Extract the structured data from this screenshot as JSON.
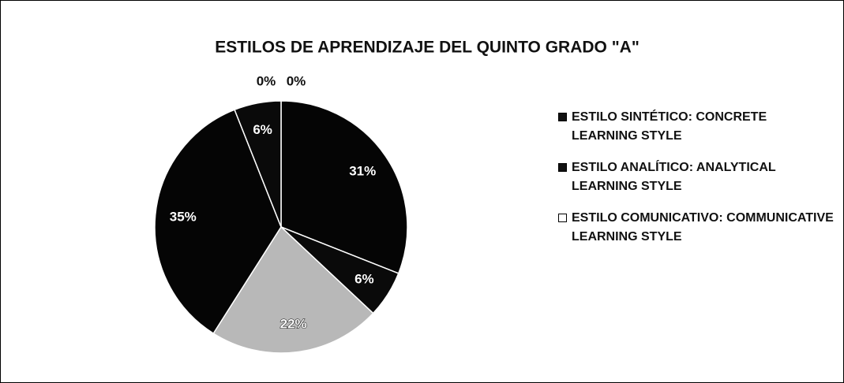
{
  "chart_data": {
    "type": "pie",
    "title": "ESTILOS DE APRENDIZAJE DEL QUINTO GRADO \"A\"",
    "categories": [
      "ESTILO SINTÉTICO: CONCRETE LEARNING STYLE",
      "ESTILO ANALÍTICO: ANALYTICAL LEARNING STYLE",
      "ESTILO COMUNICATIVO: COMMUNICATIVE LEARNING STYLE",
      null,
      null,
      null,
      null
    ],
    "values": [
      31,
      6,
      22,
      35,
      6,
      0,
      0
    ],
    "value_labels": [
      "31%",
      "6%",
      "22%",
      "35%",
      "6%",
      "0%",
      "0%"
    ],
    "colors": [
      "#050505",
      "#0a0a0a",
      "#b8b8b8",
      "#050505",
      "#0a0a0a",
      "#050505",
      "#050505"
    ],
    "legend_colors": [
      "#111111",
      "#111111",
      "#ffffff"
    ],
    "legend": "right"
  }
}
